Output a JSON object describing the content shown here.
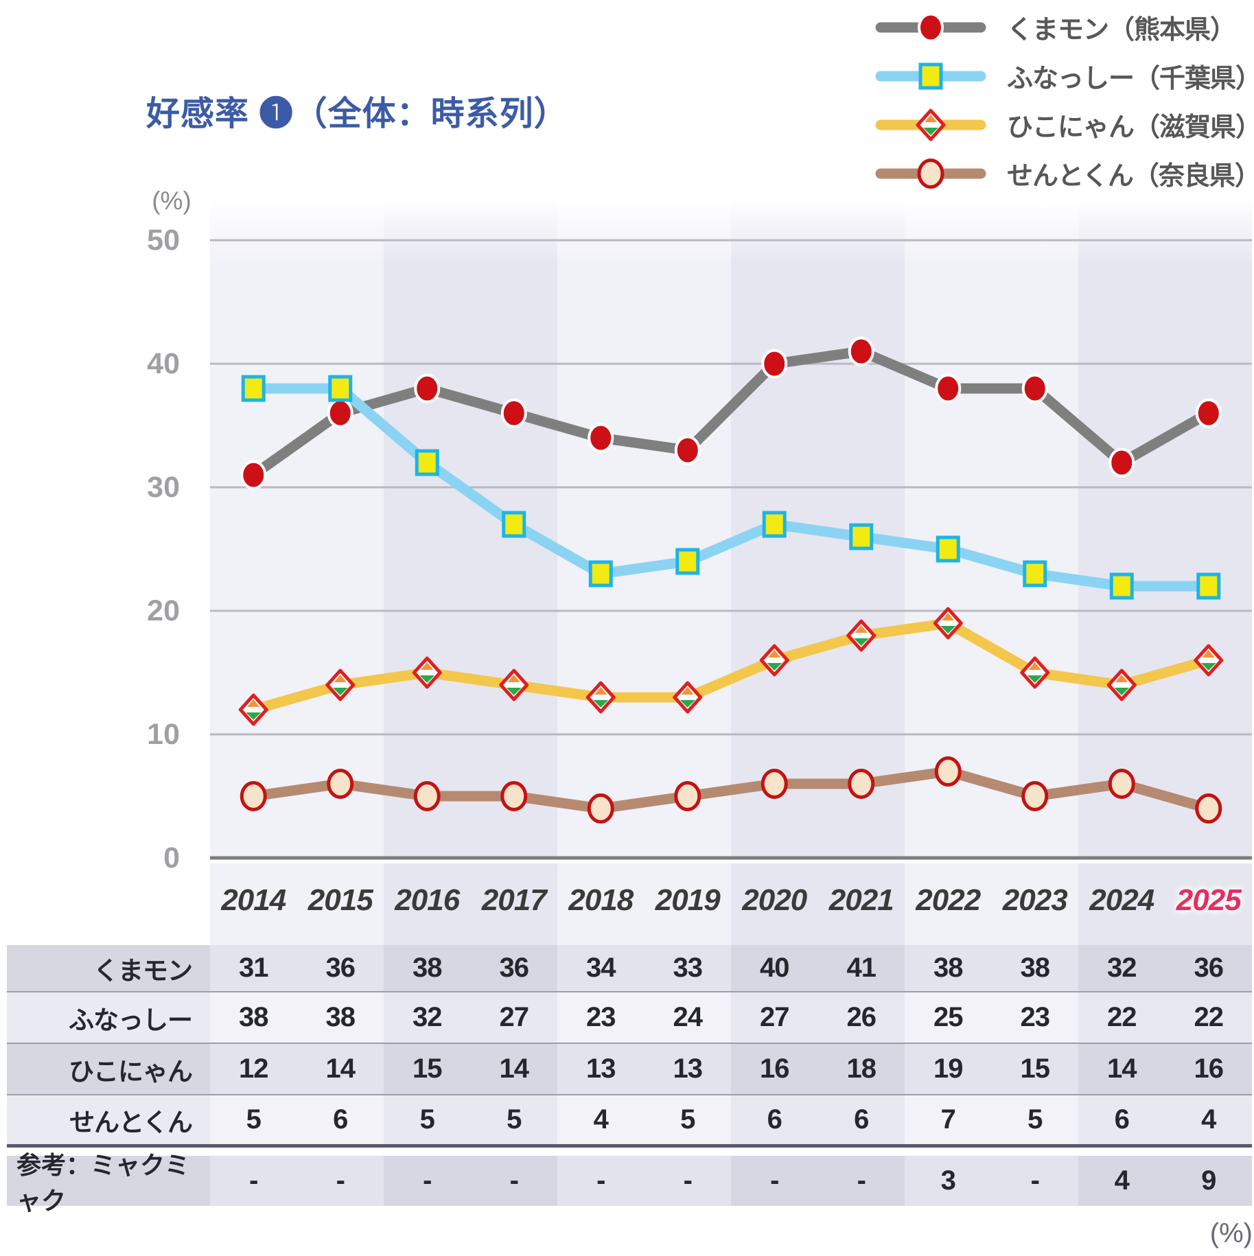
{
  "title": "好感率 ❶（全体：時系列）",
  "unit_label_top": "(%)",
  "unit_label_bottom": "(%)",
  "colors": {
    "title": "#3c5ba6",
    "legend_text": "#575757",
    "tick_text": "#a0a0a4",
    "unit_text": "#8a8a8a",
    "unit_bottom_text": "#6a6a75",
    "year_text": "#3a3a3a",
    "year_highlight_text": "#e62e5c",
    "grid_line": "#b9b9c1",
    "axis_line": "#7c7c7c",
    "band_light": "#f1f1f8",
    "band_dark": "#e6e6f1",
    "table_dark_row_light_col": "#e3e3ed",
    "table_dark_row_dark_col": "#d7d7e3",
    "table_dark_row_label": "#d7d7e2",
    "table_light_row_light_col": "#f2f2f8",
    "table_light_row_dark_col": "#e8e8f1",
    "table_light_row_label": "#eaeaf2",
    "table_text": "#26262e",
    "table_sep": "#9c9cac",
    "table_sep_thick": "#595968"
  },
  "chart_data": {
    "type": "line",
    "x": [
      "2014",
      "2015",
      "2016",
      "2017",
      "2018",
      "2019",
      "2020",
      "2021",
      "2022",
      "2023",
      "2024",
      "2025"
    ],
    "highlight_x": "2025",
    "ylabel": "(%)",
    "ylim": [
      0,
      50
    ],
    "yticks": [
      "0",
      "10",
      "20",
      "30",
      "40",
      "50"
    ],
    "grid": "horizontal",
    "legend_position": "top-right",
    "series": [
      {
        "name": "くまモン（熊本県）",
        "short": "くまモン",
        "values": [
          31,
          36,
          38,
          36,
          34,
          33,
          40,
          41,
          38,
          38,
          32,
          36
        ],
        "line_color": "#7f7f7f",
        "marker": "ellipse",
        "marker_fill": "#cc1016",
        "marker_stroke": "#ffffff",
        "marker_stroke_width": 4,
        "row_shade": "dark"
      },
      {
        "name": "ふなっしー（千葉県）",
        "short": "ふなっしー",
        "values": [
          38,
          38,
          32,
          27,
          23,
          24,
          27,
          26,
          25,
          23,
          22,
          22
        ],
        "line_color": "#8bd3f3",
        "marker": "square",
        "marker_fill": "#f2ea10",
        "marker_stroke": "#1cb4e8",
        "marker_stroke_width": 5,
        "row_shade": "light"
      },
      {
        "name": "ひこにゃん（滋賀県）",
        "short": "ひこにゃん",
        "values": [
          12,
          14,
          15,
          14,
          13,
          13,
          16,
          18,
          19,
          15,
          14,
          16
        ],
        "line_color": "#f3c74b",
        "marker": "diamond",
        "marker_fill": "#ffffff",
        "marker_stroke": "#e01f1f",
        "marker_stroke_width": 5,
        "marker_accent_top": "#f29435",
        "marker_accent_bottom": "#2aa84c",
        "row_shade": "dark"
      },
      {
        "name": "せんとくん（奈良県）",
        "short": "せんとくん",
        "values": [
          5,
          6,
          5,
          5,
          4,
          5,
          6,
          6,
          7,
          5,
          6,
          4
        ],
        "line_color": "#b58a71",
        "marker": "ellipse",
        "marker_fill": "#f6e3c9",
        "marker_stroke": "#c41211",
        "marker_stroke_width": 5,
        "row_shade": "light"
      }
    ],
    "reference_row": {
      "label": "参考：ミャクミャク",
      "values": [
        "-",
        "-",
        "-",
        "-",
        "-",
        "-",
        "-",
        "-",
        "3",
        "-",
        "4",
        "9"
      ],
      "row_shade": "dark"
    }
  }
}
